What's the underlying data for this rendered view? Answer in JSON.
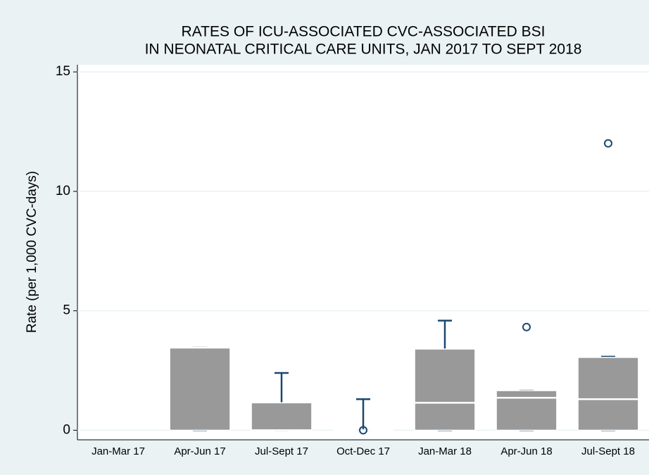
{
  "chart_data": {
    "type": "box",
    "title": [
      "RATES OF ICU-ASSOCIATED CVC-ASSOCIATED BSI",
      "IN NEONATAL CRITICAL CARE UNITS, JAN 2017 TO SEPT 2018"
    ],
    "y_label": "Rate (per 1,000 CVC-days)",
    "categories": [
      "Jan-Mar 17",
      "Apr-Jun 17",
      "Jul-Sept 17",
      "Oct-Dec 17",
      "Jan-Mar 18",
      "Apr-Jun 18",
      "Jul-Sept 18"
    ],
    "min": [
      null,
      0,
      0,
      0,
      0,
      0,
      0
    ],
    "q1": [
      null,
      0,
      0,
      0,
      0,
      0,
      0
    ],
    "median": [
      null,
      3.46,
      0,
      0,
      1.15,
      1.36,
      1.3
    ],
    "q3": [
      null,
      3.46,
      1.15,
      0,
      3.4,
      1.66,
      3.05
    ],
    "max": [
      null,
      3.46,
      2.4,
      1.3,
      4.59,
      1.66,
      3.08
    ],
    "outliers": [
      [],
      [],
      [],
      [
        0
      ],
      [],
      [
        4.32
      ],
      [
        12.01
      ]
    ],
    "box_color": "#999999",
    "whisker_color": "#1a476f",
    "ylim": [
      -0.4,
      15.3
    ],
    "yticks": [
      0,
      5,
      10,
      15
    ],
    "grid": true
  }
}
